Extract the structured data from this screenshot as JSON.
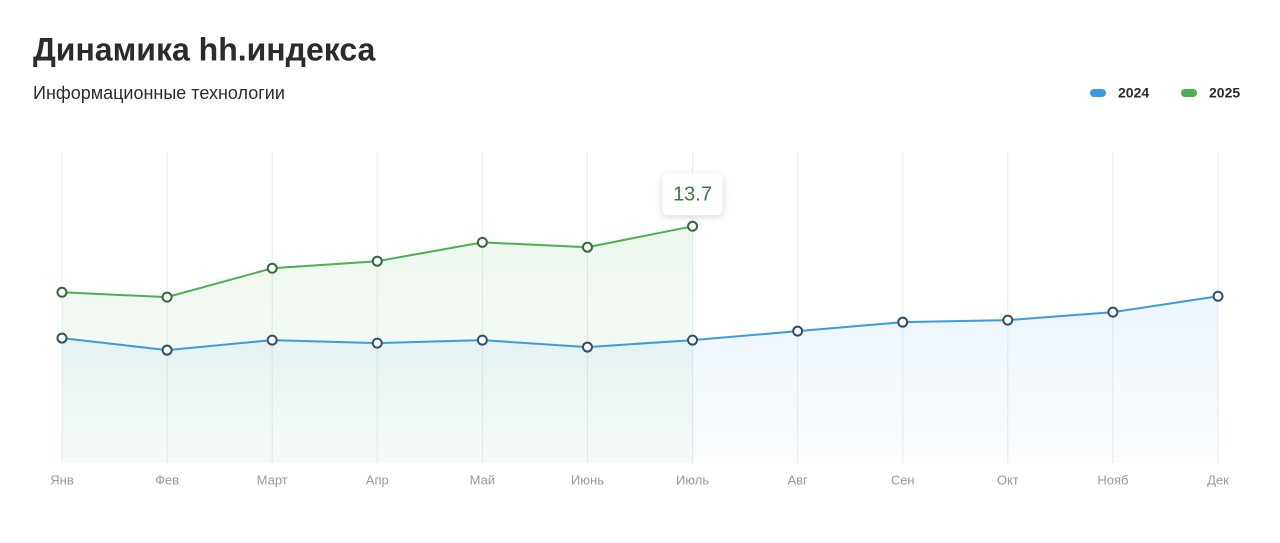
{
  "chart_data": {
    "type": "line",
    "title": "Динамика hh.индекса",
    "subtitle": "Информационные технологии",
    "categories": [
      "Янв",
      "Фев",
      "Март",
      "Апр",
      "Май",
      "Июнь",
      "Июль",
      "Авг",
      "Сен",
      "Окт",
      "Нояб",
      "Дек"
    ],
    "series": [
      {
        "name": "2024",
        "color": "#3b9be0",
        "values": [
          7.23,
          6.53,
          7.11,
          6.94,
          7.11,
          6.71,
          7.11,
          7.63,
          8.15,
          8.27,
          8.73,
          9.65
        ]
      },
      {
        "name": "2025",
        "color": "#4caf50",
        "values": [
          9.88,
          9.6,
          11.27,
          11.68,
          12.77,
          12.49,
          13.7,
          null,
          null,
          null,
          null,
          null
        ]
      }
    ],
    "ylim": [
      0,
      18
    ],
    "grid": true,
    "legend": "top-right"
  }
}
